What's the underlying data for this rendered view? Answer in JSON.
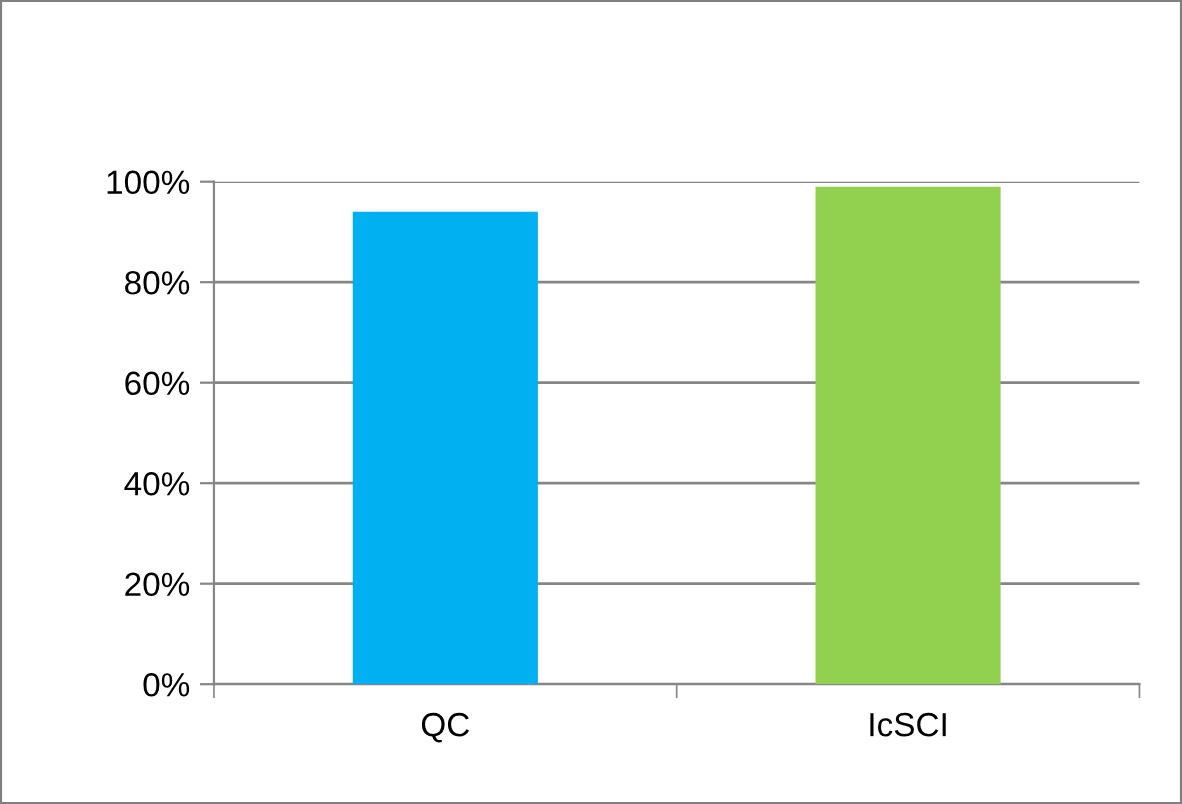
{
  "chart_data": {
    "type": "bar",
    "categories": [
      "QC",
      "IcSCI"
    ],
    "values": [
      94,
      99
    ],
    "colors": [
      "#00b0f0",
      "#92d050"
    ],
    "ylim": [
      0,
      100
    ],
    "yticks": [
      {
        "value": 0,
        "label": "0%"
      },
      {
        "value": 20,
        "label": "20%"
      },
      {
        "value": 40,
        "label": "40%"
      },
      {
        "value": 60,
        "label": "60%"
      },
      {
        "value": 80,
        "label": "80%"
      },
      {
        "value": 100,
        "label": "100%"
      }
    ],
    "grid": "y"
  }
}
